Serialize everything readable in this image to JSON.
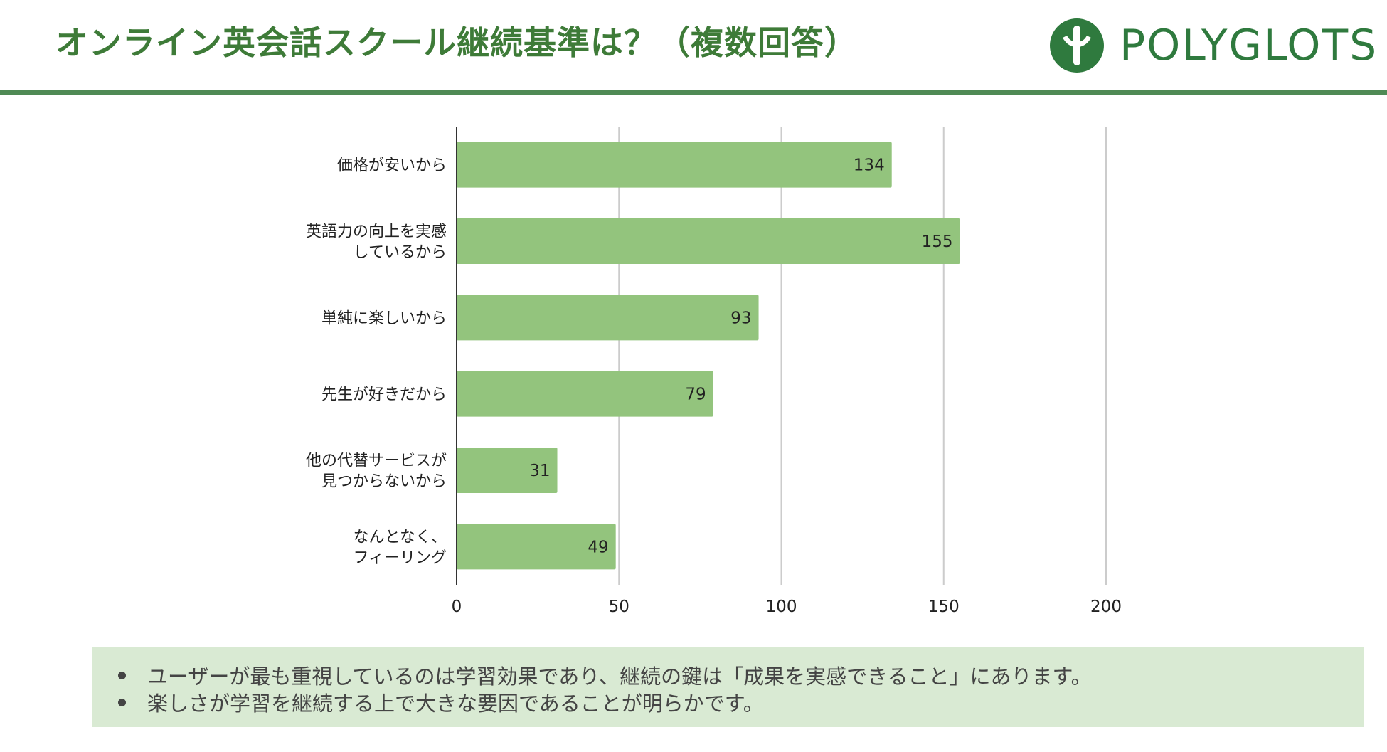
{
  "header": {
    "title": "オンライン英会話スクール継続基準は？（複数回答）",
    "logo_text": "POLYGLOTS",
    "logo_icon": "polyglots-logo-icon",
    "accent_color": "#3e7b38",
    "rule_color": "#4f8a55"
  },
  "chart_data": {
    "type": "bar",
    "orientation": "horizontal",
    "title": "",
    "xlabel": "",
    "ylabel": "",
    "categories": [
      [
        "価格が安いから"
      ],
      [
        "英語力の向上を実感",
        "しているから"
      ],
      [
        "単純に楽しいから"
      ],
      [
        "先生が好きだから"
      ],
      [
        "他の代替サービスが",
        "見つからないから"
      ],
      [
        "なんとなく、",
        "フィーリング"
      ]
    ],
    "values": [
      134,
      155,
      93,
      79,
      31,
      49
    ],
    "xlim": [
      0,
      200
    ],
    "ticks": [
      "0",
      "50",
      "100",
      "150",
      "200"
    ],
    "grid": true,
    "legend": "none",
    "bar_color": "#93c47d",
    "data_labels": true
  },
  "notes": {
    "items": [
      "ユーザーが最も重視しているのは学習効果であり、継続の鍵は「成果を実感できること」にあります。",
      "楽しさが学習を継続する上で大きな要因であることが明らかです。"
    ],
    "background": "#d9ead3"
  }
}
